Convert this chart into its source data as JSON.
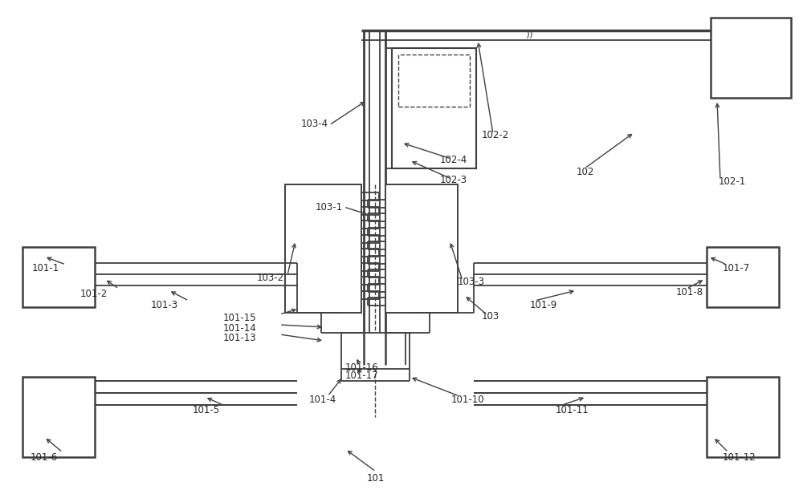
{
  "bg_color": "#ffffff",
  "line_color": "#404040",
  "text_color": "#252525",
  "fig_width": 10.0,
  "fig_height": 6.26,
  "dpi": 100
}
